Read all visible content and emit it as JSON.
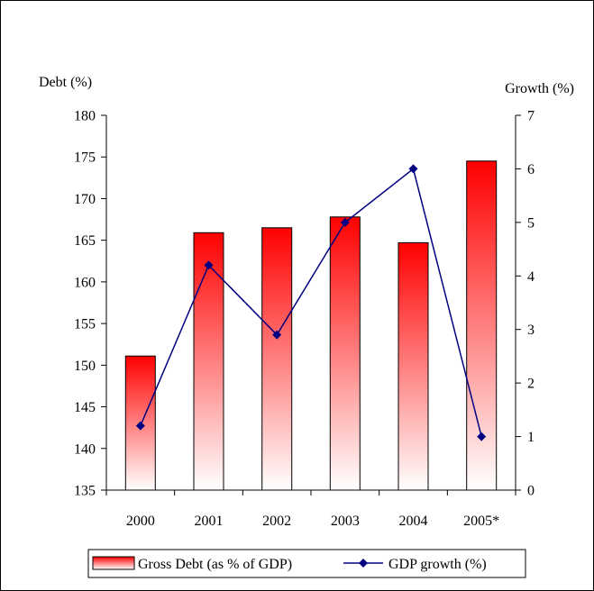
{
  "chart_data": {
    "type": "bar",
    "categories": [
      "2000",
      "2001",
      "2002",
      "2003",
      "2004",
      "2005*"
    ],
    "series": [
      {
        "name": "Gross Debt (as % of GDP)",
        "type": "bar",
        "axis": "left",
        "values": [
          151.1,
          165.9,
          166.5,
          167.8,
          164.7,
          174.5
        ],
        "color": "#ff0000"
      },
      {
        "name": "GDP growth (%)",
        "type": "line",
        "axis": "right",
        "values": [
          1.2,
          4.2,
          2.9,
          5.0,
          6.0,
          1.0
        ],
        "color": "#000080"
      }
    ],
    "ylabel": "Debt (%)",
    "ylabel_right": "Growth (%)",
    "ylim": [
      135,
      180
    ],
    "ylim_right": [
      0,
      7
    ],
    "yticks": [
      "135",
      "140",
      "145",
      "150",
      "155",
      "160",
      "165",
      "170",
      "175",
      "180"
    ],
    "yticks_right": [
      "0",
      "1",
      "2",
      "3",
      "4",
      "5",
      "6",
      "7"
    ],
    "grid": false,
    "legend_position": "bottom"
  }
}
